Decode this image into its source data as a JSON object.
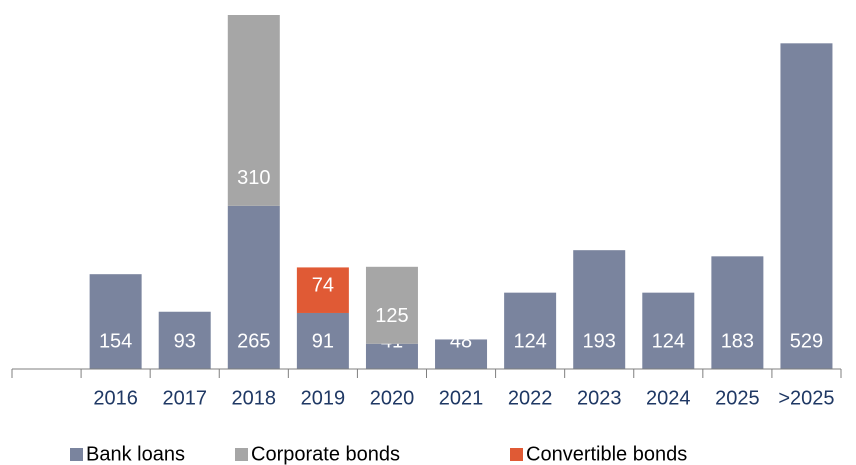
{
  "chart_data": {
    "type": "stacked_bar",
    "categories": [
      null,
      "2016",
      "2017",
      "2018",
      "2019",
      "2020",
      "2021",
      "2022",
      "2023",
      "2024",
      "2025",
      ">2025"
    ],
    "series": [
      {
        "name": "Bank loans",
        "color": "#7a849e",
        "values": [
          null,
          154,
          93,
          265,
          91,
          41,
          48,
          124,
          193,
          124,
          183,
          529
        ]
      },
      {
        "name": "Corporate bonds",
        "color": "#a6a6a6",
        "values": [
          null,
          null,
          null,
          310,
          null,
          125,
          null,
          null,
          null,
          null,
          null,
          null
        ]
      },
      {
        "name": "Convertible bonds",
        "color": "#e05a35",
        "values": [
          null,
          null,
          null,
          null,
          74,
          null,
          null,
          null,
          null,
          null,
          null,
          null
        ]
      }
    ]
  }
}
